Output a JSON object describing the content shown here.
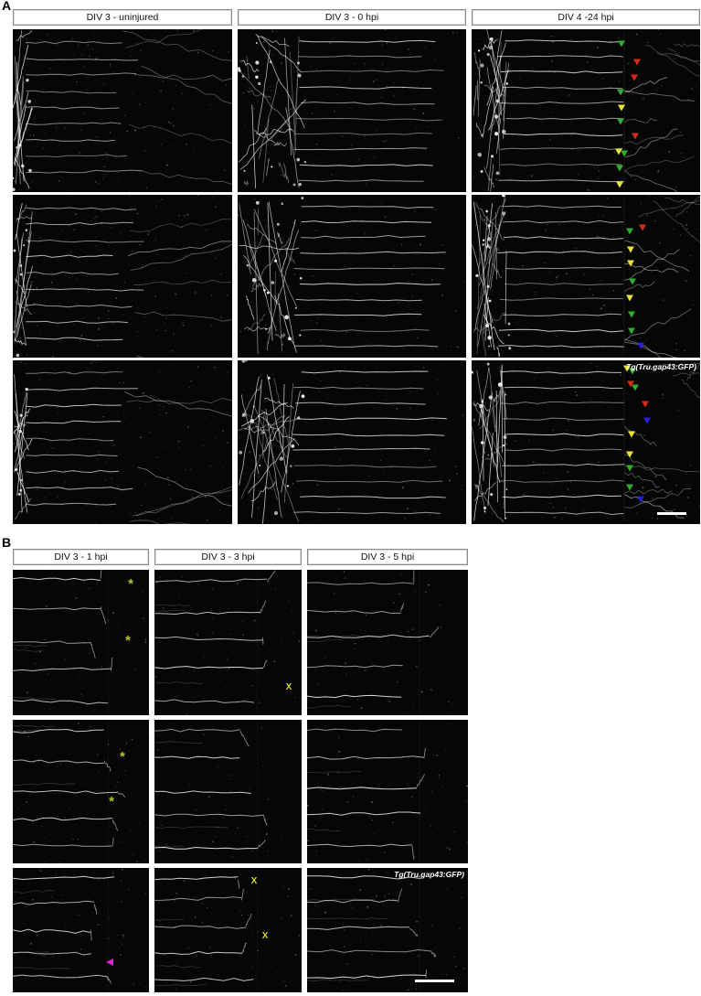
{
  "panels": {
    "A": {
      "label": "A",
      "columns": [
        {
          "label": "DIV 3 - uninjured"
        },
        {
          "label": "DIV 3 - 0 hpi"
        },
        {
          "label": "DIV 4 -24 hpi"
        }
      ],
      "cells": {
        "r0c2": {
          "markers": [
            {
              "t": "tri-down",
              "color": "green",
              "x": 65.6,
              "y": 9.0
            },
            {
              "t": "tri-down",
              "color": "red",
              "x": 72.4,
              "y": 20.2
            },
            {
              "t": "tri-down",
              "color": "red",
              "x": 71.2,
              "y": 29.8
            },
            {
              "t": "tri-down",
              "color": "green",
              "x": 65.2,
              "y": 38.8
            },
            {
              "t": "tri-down",
              "color": "yellow",
              "x": 65.6,
              "y": 48.3
            },
            {
              "t": "tri-down",
              "color": "green",
              "x": 65.2,
              "y": 56.7
            },
            {
              "t": "tri-down",
              "color": "red",
              "x": 71.6,
              "y": 65.7
            },
            {
              "t": "tri-down",
              "color": "yellow",
              "x": 64.4,
              "y": 75.3
            },
            {
              "t": "tri-down",
              "color": "green",
              "x": 66.8,
              "y": 76.5
            },
            {
              "t": "tri-down",
              "color": "green",
              "x": 64.8,
              "y": 85.4
            },
            {
              "t": "tri-down",
              "color": "yellow",
              "x": 64.8,
              "y": 95.5
            }
          ]
        },
        "r1c2": {
          "markers": [
            {
              "t": "tri-down",
              "color": "red",
              "x": 74.8,
              "y": 20.2
            },
            {
              "t": "tri-down",
              "color": "green",
              "x": 69.2,
              "y": 22.5
            },
            {
              "t": "tri-down",
              "color": "yellow",
              "x": 69.6,
              "y": 33.7
            },
            {
              "t": "tri-down",
              "color": "yellow",
              "x": 69.6,
              "y": 42.1
            },
            {
              "t": "tri-down",
              "color": "green",
              "x": 70.4,
              "y": 53.4
            },
            {
              "t": "tri-down",
              "color": "yellow",
              "x": 69.2,
              "y": 63.5
            },
            {
              "t": "tri-down",
              "color": "green",
              "x": 70.0,
              "y": 73.6
            },
            {
              "t": "tri-down",
              "color": "green",
              "x": 70.0,
              "y": 83.7
            },
            {
              "t": "tri-down",
              "color": "blue",
              "x": 74.0,
              "y": 92.7
            }
          ]
        },
        "r2c2": {
          "corner_label": "Tg(Tru.gap43:GFP)",
          "scalebar": {
            "x": 81,
            "y": 92.5,
            "w": 13
          },
          "markers": [
            {
              "t": "tri-down",
              "color": "yellow",
              "x": 68.0,
              "y": 5.0
            },
            {
              "t": "tri-down",
              "color": "green",
              "x": 70.2,
              "y": 6.7
            },
            {
              "t": "tri-down",
              "color": "red",
              "x": 69.6,
              "y": 14.6
            },
            {
              "t": "tri-down",
              "color": "green",
              "x": 71.4,
              "y": 16.8
            },
            {
              "t": "tri-down",
              "color": "red",
              "x": 76.0,
              "y": 26.8
            },
            {
              "t": "tri-down",
              "color": "blue",
              "x": 76.8,
              "y": 36.9
            },
            {
              "t": "tri-down",
              "color": "yellow",
              "x": 70.0,
              "y": 45.3
            },
            {
              "t": "tri-down",
              "color": "yellow",
              "x": 69.2,
              "y": 57.5
            },
            {
              "t": "tri-down",
              "color": "green",
              "x": 69.2,
              "y": 65.9
            },
            {
              "t": "tri-down",
              "color": "green",
              "x": 69.2,
              "y": 77.7
            },
            {
              "t": "tri-down",
              "color": "blue",
              "x": 74.0,
              "y": 84.9
            }
          ]
        }
      }
    },
    "B": {
      "label": "B",
      "columns": [
        {
          "label": "DIV 3 - 1 hpi"
        },
        {
          "label": "DIV 3 - 3 hpi"
        },
        {
          "label": "DIV 3 - 5 hpi"
        }
      ],
      "cells": {
        "r0c0": {
          "markers": [
            {
              "t": "ast",
              "color": "asterisk",
              "x": 86.6,
              "y": 7.5
            },
            {
              "t": "ast",
              "color": "asterisk",
              "x": 84.6,
              "y": 46.5
            }
          ]
        },
        "r0c1": {
          "markers": [
            {
              "t": "x",
              "color": "xmark",
              "x": 91.3,
              "y": 81.1
            }
          ]
        },
        "r1c0": {
          "markers": [
            {
              "t": "ast",
              "color": "asterisk",
              "x": 80.5,
              "y": 23.6
            },
            {
              "t": "ast",
              "color": "asterisk",
              "x": 72.5,
              "y": 54.8
            }
          ]
        },
        "r2c0": {
          "markers": [
            {
              "t": "tri-left",
              "color": "magenta",
              "x": 71.1,
              "y": 75.7
            }
          ]
        },
        "r2c1": {
          "markers": [
            {
              "t": "x",
              "color": "xmark",
              "x": 67.7,
              "y": 11.0
            },
            {
              "t": "x",
              "color": "xmark",
              "x": 75.2,
              "y": 55.1
            }
          ]
        },
        "r2c2": {
          "corner_label": "Tg(Tru.gap43:GFP)",
          "scalebar": {
            "x": 67,
            "y": 90,
            "w": 24.5
          }
        }
      }
    }
  },
  "colors": {
    "green": "#2fae2f",
    "red": "#da2a17",
    "yellow": "#e9e23a",
    "blue": "#2a1fd8",
    "magenta": "#cf29cf",
    "asterisk": "#b9c427",
    "xmark": "#d6d825"
  },
  "glyphs": {
    "ast": "*",
    "x": "X"
  }
}
